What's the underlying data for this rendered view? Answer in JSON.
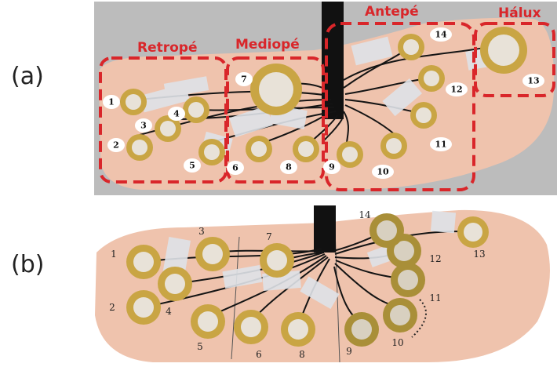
{
  "panel_labels": {
    "a": "(a)",
    "b": "(b)"
  },
  "regions": {
    "retrope": "Retropé",
    "mediope": "Mediopé",
    "antepe": "Antepé",
    "halux": "Hálux"
  },
  "sensor_numbers": [
    "1",
    "2",
    "3",
    "4",
    "5",
    "6",
    "7",
    "8",
    "9",
    "10",
    "11",
    "12",
    "13",
    "14"
  ],
  "insole_marks": [
    "1",
    "2",
    "3",
    "4",
    "5",
    "6",
    "7",
    "8",
    "9",
    "10",
    "11",
    "12",
    "13",
    "14"
  ],
  "colors": {
    "region_border": "#d9262a",
    "insole": "#efc3ad",
    "brass": "#c9a544",
    "tape": "#dfe3e8",
    "wire": "#141414"
  }
}
